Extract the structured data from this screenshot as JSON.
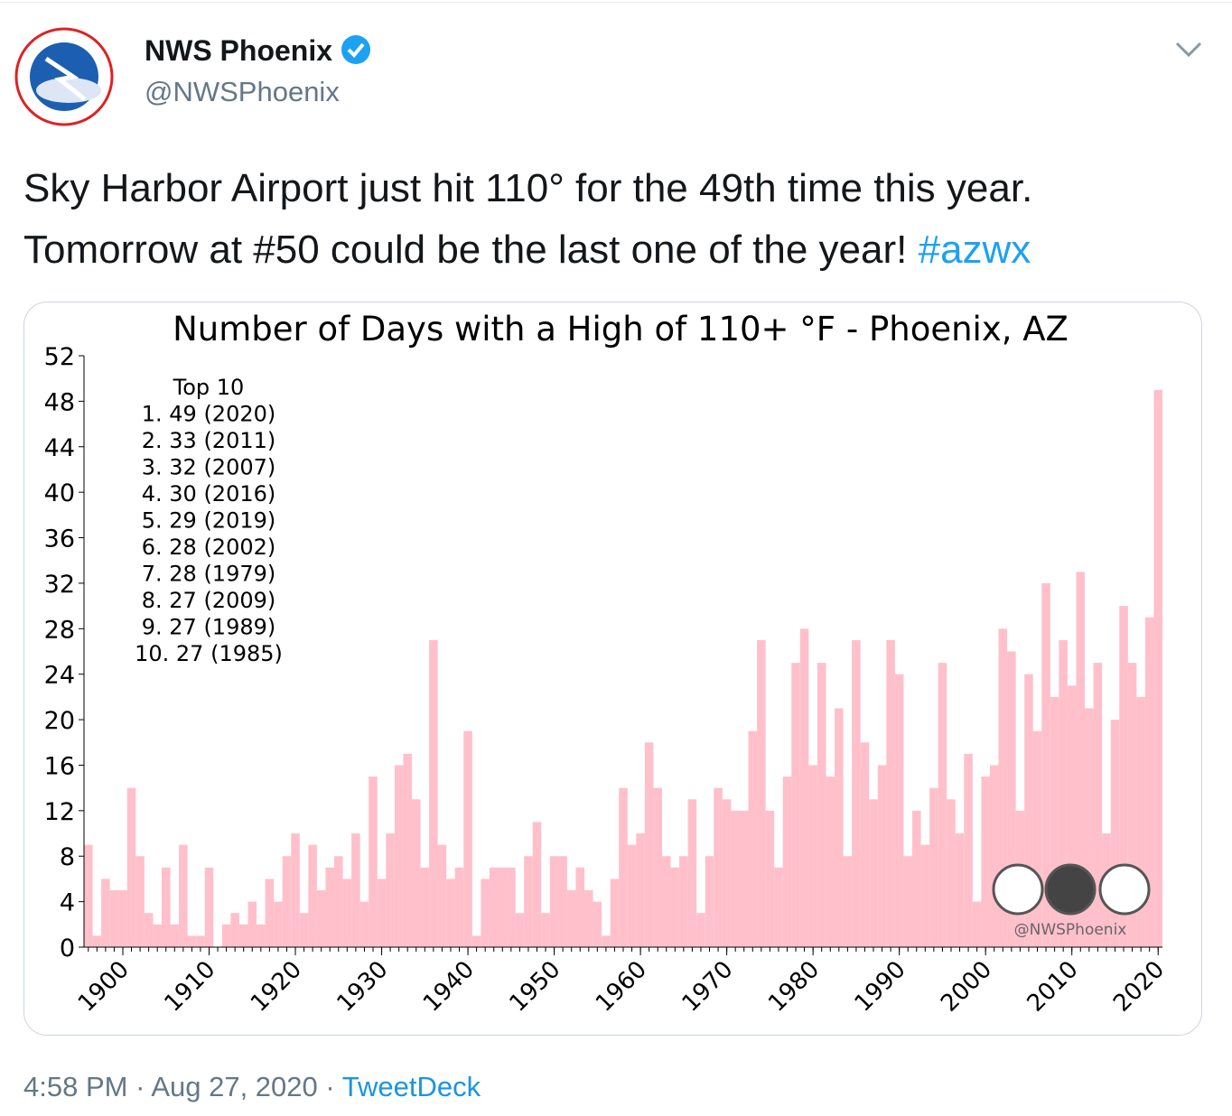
{
  "tweet": {
    "name": "NWS Phoenix",
    "handle": "@NWSPhoenix",
    "text_lines": [
      "Sky Harbor Airport just hit 110° for the 49th time this year.",
      "Tomorrow at #50 could be the last one of the year!"
    ],
    "hashtag": "#azwx",
    "time": "4:58 PM",
    "separator": "·",
    "date": "Aug 27, 2020",
    "source": "TweetDeck"
  },
  "chart_data": {
    "type": "bar",
    "title": "Number of Days with a High of 110+ °F - Phoenix, AZ",
    "color": "#ffc0cb",
    "x": [
      1896,
      1897,
      1898,
      1899,
      1900,
      1901,
      1902,
      1903,
      1904,
      1905,
      1906,
      1907,
      1908,
      1909,
      1910,
      1911,
      1912,
      1913,
      1914,
      1915,
      1916,
      1917,
      1918,
      1919,
      1920,
      1921,
      1922,
      1923,
      1924,
      1925,
      1926,
      1927,
      1928,
      1929,
      1930,
      1931,
      1932,
      1933,
      1934,
      1935,
      1936,
      1937,
      1938,
      1939,
      1940,
      1941,
      1942,
      1943,
      1944,
      1945,
      1946,
      1947,
      1948,
      1949,
      1950,
      1951,
      1952,
      1953,
      1954,
      1955,
      1956,
      1957,
      1958,
      1959,
      1960,
      1961,
      1962,
      1963,
      1964,
      1965,
      1966,
      1967,
      1968,
      1969,
      1970,
      1971,
      1972,
      1973,
      1974,
      1975,
      1976,
      1977,
      1978,
      1979,
      1980,
      1981,
      1982,
      1983,
      1984,
      1985,
      1986,
      1987,
      1988,
      1989,
      1990,
      1991,
      1992,
      1993,
      1994,
      1995,
      1996,
      1997,
      1998,
      1999,
      2000,
      2001,
      2002,
      2003,
      2004,
      2005,
      2006,
      2007,
      2008,
      2009,
      2010,
      2011,
      2012,
      2013,
      2014,
      2015,
      2016,
      2017,
      2018,
      2019,
      2020
    ],
    "values": [
      9,
      1,
      6,
      5,
      5,
      14,
      8,
      3,
      2,
      7,
      2,
      9,
      1,
      1,
      7,
      0,
      2,
      3,
      2,
      4,
      2,
      6,
      4,
      8,
      10,
      3,
      9,
      5,
      7,
      8,
      6,
      10,
      4,
      15,
      6,
      10,
      16,
      17,
      13,
      7,
      27,
      9,
      6,
      7,
      19,
      1,
      6,
      7,
      7,
      7,
      3,
      8,
      11,
      3,
      8,
      8,
      5,
      7,
      5,
      4,
      1,
      6,
      14,
      9,
      10,
      18,
      14,
      8,
      7,
      8,
      13,
      3,
      8,
      14,
      13,
      12,
      12,
      19,
      27,
      12,
      7,
      15,
      25,
      28,
      16,
      25,
      15,
      21,
      8,
      27,
      18,
      13,
      16,
      27,
      24,
      8,
      12,
      9,
      14,
      25,
      13,
      10,
      17,
      4,
      15,
      16,
      28,
      26,
      12,
      24,
      19,
      32,
      22,
      27,
      23,
      33,
      21,
      25,
      10,
      20,
      30,
      25,
      22,
      29,
      49
    ],
    "xlim": [
      1895.5,
      2020.5
    ],
    "xticks": [
      1900,
      1910,
      1920,
      1930,
      1940,
      1950,
      1960,
      1970,
      1980,
      1990,
      2000,
      2010,
      2020
    ],
    "ylim": [
      0,
      52
    ],
    "yticks": [
      0,
      4,
      8,
      12,
      16,
      20,
      24,
      28,
      32,
      36,
      40,
      44,
      48,
      52
    ],
    "annotation": [
      "Top 10",
      "1. 49 (2020)",
      "2. 33 (2011)",
      "3. 32 (2007)",
      "4. 30 (2016)",
      "5. 29 (2019)",
      "6. 28 (2002)",
      "7. 28 (1979)",
      "8. 27 (2009)",
      "9. 27 (1989)",
      "10. 27 (1985)"
    ],
    "watermark": "@NWSPhoenix"
  }
}
